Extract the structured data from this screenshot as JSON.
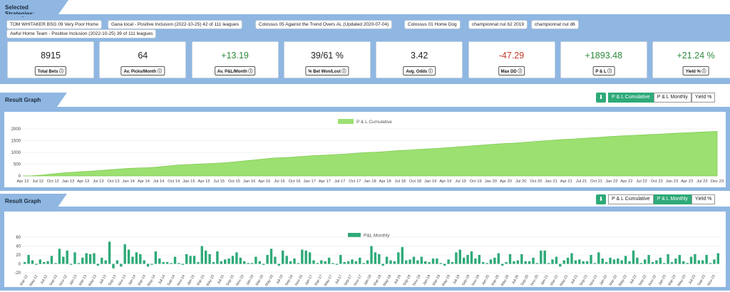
{
  "strategies": {
    "heading": "Selected Strategies:",
    "chips": [
      "TOM WHITAKER BSG 09 Very Poor Home",
      "Gana local - Positive Inclusion (2022-10-25) 42 of 111 leagues",
      "Colossus 05 Against the Trend Overs AL (Updated 2020-07-04)",
      "Colossus 01 Home Dog",
      "championnat nul b2 2019",
      "championnat nul d6",
      "Awful Home Team - Positive Inclusion (2022-10-25) 39 of 111 leagues"
    ]
  },
  "stats": [
    {
      "value": "8915",
      "label": "Total Bets",
      "color": "#222222"
    },
    {
      "value": "64",
      "label": "Av. Picks/Month",
      "color": "#222222"
    },
    {
      "value": "+13.19",
      "label": "Av. P&L/Month",
      "color": "#2f8a3c"
    },
    {
      "value": "39/61 %",
      "label": "% Bet Won/Lost",
      "color": "#222222"
    },
    {
      "value": "3.42",
      "label": "Avg. Odds",
      "color": "#222222"
    },
    {
      "value": "-47.29",
      "label": "Max DD",
      "color": "#c0392b"
    },
    {
      "value": "+1893.48",
      "label": "P & L",
      "color": "#2f8a3c"
    },
    {
      "value": "+21.24 %",
      "label": "Yield %",
      "color": "#2f8a3c"
    }
  ],
  "info_icon": "info-circle-icon",
  "graph1": {
    "heading": "Result Graph",
    "download_icon": "download-icon",
    "buttons": [
      "P & L Cumulative",
      "P & L Monthly",
      "Yield %"
    ],
    "active": 0
  },
  "graph2": {
    "heading": "Result Graph",
    "download_icon": "download-icon",
    "buttons": [
      "P & L Cumulative",
      "P & L Monthly",
      "Yield %"
    ],
    "active": 1
  },
  "chart_data": [
    {
      "type": "area",
      "legend": [
        "P & L Cumulative"
      ],
      "legend_position": "top-center",
      "color": "#9be070",
      "ylim": [
        0,
        2000
      ],
      "yticks": [
        0,
        500,
        1000,
        1500,
        2000
      ],
      "x_tick_labels": [
        "Apr 12",
        "Jul 12",
        "Oct 12",
        "Jan 13",
        "Apr 13",
        "Jul 13",
        "Oct 13",
        "Jan 14",
        "Apr 14",
        "Jul 14",
        "Oct 14",
        "Jan 15",
        "Apr 15",
        "Jul 15",
        "Oct 15",
        "Jan 16",
        "Apr 16",
        "Jul 16",
        "Oct 16",
        "Jan 17",
        "Apr 17",
        "Jul 17",
        "Oct 17",
        "Jan 18",
        "Apr 18",
        "Jul 18",
        "Oct 18",
        "Jan 19",
        "Apr 19",
        "Jul 19",
        "Oct 19",
        "Jan 20",
        "Apr 20",
        "Jul 20",
        "Oct 20",
        "Jan 21",
        "Apr 21",
        "Jul 21",
        "Oct 21",
        "Jan 22",
        "Apr 22",
        "Jul 22",
        "Oct 22",
        "Jan 23",
        "Apr 23",
        "Jul 23",
        "Dec 23"
      ],
      "series": [
        {
          "name": "P & L Cumulative",
          "values": [
            0,
            10,
            40,
            80,
            120,
            150,
            180,
            200,
            230,
            260,
            290,
            320,
            340,
            350,
            380,
            420,
            460,
            480,
            500,
            520,
            540,
            560,
            600,
            640,
            680,
            720,
            760,
            780,
            800,
            830,
            860,
            880,
            900,
            920,
            950,
            980,
            1000,
            1020,
            1050,
            1080,
            1100,
            1130,
            1150,
            1170,
            1200,
            1230,
            1260,
            1290,
            1320,
            1350,
            1380,
            1400,
            1430,
            1460,
            1490,
            1520,
            1550,
            1570,
            1600,
            1620,
            1650,
            1680,
            1700,
            1720,
            1740,
            1760,
            1780,
            1800,
            1820,
            1840,
            1860,
            1880,
            1893
          ]
        }
      ],
      "grid": true
    },
    {
      "type": "bar",
      "legend": [
        "P&L Monthly"
      ],
      "legend_position": "top-center",
      "color": "#2eaa78",
      "ylim": [
        -20,
        60
      ],
      "yticks": [
        -20,
        0,
        20,
        40,
        60
      ],
      "x_tick_labels": [
        "Mar-12",
        "May-12",
        "Jul-12",
        "Sep-12",
        "Nov-12",
        "Jan-13",
        "Mar-13",
        "May-13",
        "Jul-13",
        "Sep-13",
        "Nov-13",
        "Jan-14",
        "Mar-14",
        "May-14",
        "Jul-14",
        "Sep-14",
        "Nov-14",
        "Jan-15",
        "Mar-15",
        "May-15",
        "Jul-15",
        "Sep-15",
        "Nov-15",
        "Jan-16",
        "Mar-16",
        "May-16",
        "Jul-16",
        "Sep-16",
        "Nov-16",
        "Jan-17",
        "Mar-17",
        "May-17",
        "Jul-17",
        "Sep-17",
        "Nov-17",
        "Jan-18",
        "Mar-18",
        "May-18",
        "Jul-18",
        "Sep-18",
        "Nov-18",
        "Jan-19",
        "Mar-19",
        "May-19",
        "Jul-19",
        "Sep-19",
        "Nov-19",
        "Jan-20",
        "Mar-20",
        "May-20",
        "Jul-20",
        "Sep-20",
        "Nov-20",
        "Jan-21",
        "Mar-21",
        "May-21",
        "Jul-21",
        "Sep-21",
        "Nov-21",
        "Jan-22",
        "Mar-22",
        "May-22",
        "Jul-22",
        "Sep-22",
        "Nov-22",
        "Jan-23",
        "Mar-23",
        "May-23",
        "Jul-23",
        "Sep-23",
        "Nov-23"
      ],
      "series": [
        {
          "name": "P&L Monthly",
          "values": [
            4,
            20,
            8,
            -2,
            10,
            4,
            6,
            18,
            2,
            34,
            16,
            30,
            -2,
            26,
            2,
            14,
            24,
            22,
            24,
            -4,
            14,
            8,
            50,
            -10,
            8,
            -6,
            44,
            32,
            16,
            26,
            22,
            8,
            -6,
            -2,
            28,
            12,
            4,
            4,
            2,
            16,
            2,
            -2,
            22,
            18,
            18,
            4,
            40,
            30,
            22,
            4,
            28,
            6,
            10,
            12,
            18,
            26,
            14,
            6,
            2,
            2,
            16,
            6,
            -2,
            20,
            34,
            16,
            -4,
            30,
            18,
            6,
            12,
            2,
            32,
            30,
            26,
            8,
            2,
            8,
            6,
            14,
            2,
            -2,
            20,
            4,
            6,
            10,
            6,
            14,
            2,
            8,
            40,
            26,
            22,
            -4,
            16,
            8,
            6,
            26,
            38,
            8,
            10,
            16,
            8,
            16,
            6,
            4,
            12,
            12,
            2,
            -4,
            10,
            4,
            26,
            32,
            14,
            20,
            28,
            12,
            20,
            4,
            2,
            10,
            14,
            24,
            -4,
            4,
            22,
            6,
            8,
            22,
            6,
            6,
            14,
            2,
            30,
            30,
            2,
            10,
            16,
            -6,
            8,
            14,
            24,
            8,
            10,
            6,
            6,
            20,
            2,
            26,
            12,
            4,
            14,
            10,
            12,
            8,
            18,
            6,
            30,
            14,
            2,
            10,
            20,
            4,
            8,
            14,
            2,
            22,
            4,
            12,
            20,
            6,
            2,
            16,
            22,
            8,
            8,
            20,
            2,
            10,
            24
          ]
        }
      ],
      "grid": true
    }
  ]
}
